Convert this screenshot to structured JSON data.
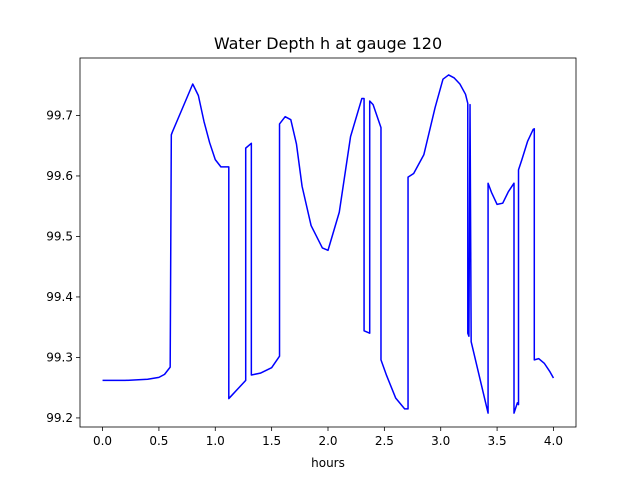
{
  "chart_data": {
    "type": "line",
    "title": "Water Depth h at gauge 120",
    "xlabel": "hours",
    "ylabel": "",
    "xlim": [
      -0.2,
      4.2
    ],
    "ylim": [
      99.185,
      99.795
    ],
    "xticks": [
      0.0,
      0.5,
      1.0,
      1.5,
      2.0,
      2.5,
      3.0,
      3.5,
      4.0
    ],
    "xtick_labels": [
      "0.0",
      "0.5",
      "1.0",
      "1.5",
      "2.0",
      "2.5",
      "3.0",
      "3.5",
      "4.0"
    ],
    "yticks": [
      99.2,
      99.3,
      99.4,
      99.5,
      99.6,
      99.7
    ],
    "ytick_labels": [
      "99.2",
      "99.3",
      "99.4",
      "99.5",
      "99.6",
      "99.7"
    ],
    "grid": false,
    "line_color": "#0000ff",
    "series": [
      {
        "x": [
          0.0,
          0.2,
          0.4,
          0.5,
          0.55,
          0.6,
          0.61,
          0.62,
          0.7,
          0.8,
          0.85,
          0.9,
          0.95,
          1.0,
          1.05,
          1.08,
          1.12,
          1.12,
          1.15,
          1.2,
          1.27,
          1.27,
          1.32,
          1.32,
          1.4,
          1.5,
          1.57,
          1.57,
          1.62,
          1.67,
          1.72,
          1.77,
          1.85,
          1.95,
          2.0,
          2.1,
          2.2,
          2.3,
          2.32,
          2.32,
          2.37,
          2.37,
          2.4,
          2.47,
          2.47,
          2.52,
          2.6,
          2.68,
          2.71,
          2.71,
          2.76,
          2.85,
          2.95,
          3.02,
          3.07,
          3.12,
          3.17,
          3.22,
          3.24,
          3.24,
          3.25,
          3.26,
          3.26,
          3.27,
          3.27,
          3.42,
          3.42,
          3.45,
          3.5,
          3.55,
          3.6,
          3.65,
          3.65,
          3.68,
          3.68,
          3.69,
          3.69,
          3.72,
          3.77,
          3.82,
          3.83,
          3.83,
          3.87,
          3.92,
          3.97,
          4.0
        ],
        "y": [
          99.262,
          99.262,
          99.264,
          99.267,
          99.272,
          99.284,
          99.668,
          99.673,
          99.708,
          99.752,
          99.733,
          99.69,
          99.655,
          99.627,
          99.615,
          99.615,
          99.615,
          99.232,
          99.238,
          99.248,
          99.262,
          99.646,
          99.654,
          99.271,
          99.274,
          99.283,
          99.302,
          99.686,
          99.698,
          99.693,
          99.653,
          99.583,
          99.518,
          99.481,
          99.477,
          99.54,
          99.665,
          99.728,
          99.728,
          99.344,
          99.34,
          99.724,
          99.718,
          99.68,
          99.296,
          99.27,
          99.233,
          99.215,
          99.215,
          99.598,
          99.604,
          99.635,
          99.713,
          99.76,
          99.767,
          99.762,
          99.752,
          99.735,
          99.72,
          99.34,
          99.335,
          99.718,
          99.712,
          99.33,
          99.326,
          99.208,
          99.588,
          99.573,
          99.553,
          99.555,
          99.574,
          99.588,
          99.208,
          99.225,
          99.225,
          99.222,
          99.61,
          99.627,
          99.657,
          99.677,
          99.678,
          99.296,
          99.298,
          99.29,
          99.276,
          99.266
        ]
      }
    ]
  }
}
